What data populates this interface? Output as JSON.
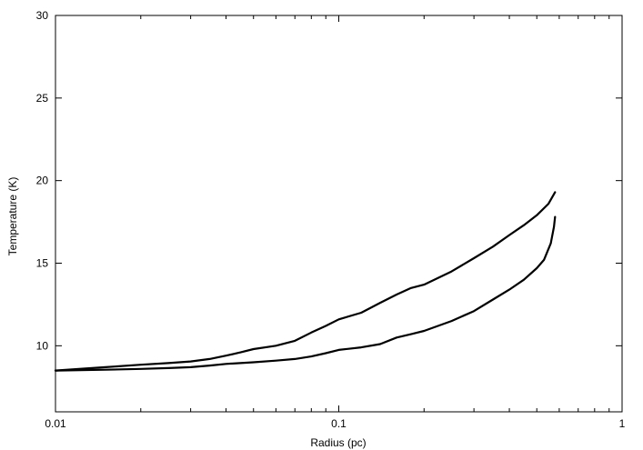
{
  "chart_data": {
    "type": "line",
    "title": "",
    "xlabel": "Radius (pc)",
    "ylabel": "Temperature (K)",
    "xscale": "log",
    "xlim": [
      0.01,
      1
    ],
    "ylim": [
      6,
      30
    ],
    "grid": false,
    "x_ticks": [
      {
        "value": 0.01,
        "label": "0.01"
      },
      {
        "value": 0.1,
        "label": "0.1"
      },
      {
        "value": 1,
        "label": "1"
      }
    ],
    "y_ticks": [
      {
        "value": 10,
        "label": "10"
      },
      {
        "value": 15,
        "label": "15"
      },
      {
        "value": 20,
        "label": "20"
      },
      {
        "value": 25,
        "label": "25"
      },
      {
        "value": 30,
        "label": "30"
      }
    ],
    "series": [
      {
        "x": [
          0.01,
          0.015,
          0.02,
          0.025,
          0.03,
          0.035,
          0.04,
          0.045,
          0.05,
          0.06,
          0.07,
          0.08,
          0.09,
          0.1,
          0.12,
          0.14,
          0.16,
          0.18,
          0.2,
          0.25,
          0.3,
          0.35,
          0.4,
          0.45,
          0.5,
          0.55,
          0.58
        ],
        "y": [
          8.5,
          8.7,
          8.85,
          8.95,
          9.05,
          9.2,
          9.4,
          9.6,
          9.8,
          10.0,
          10.3,
          10.8,
          11.2,
          11.6,
          12.0,
          12.6,
          13.1,
          13.5,
          13.7,
          14.5,
          15.3,
          16.0,
          16.7,
          17.3,
          17.9,
          18.6,
          19.3
        ]
      },
      {
        "x": [
          0.01,
          0.015,
          0.02,
          0.025,
          0.03,
          0.035,
          0.04,
          0.05,
          0.06,
          0.07,
          0.08,
          0.09,
          0.1,
          0.12,
          0.14,
          0.16,
          0.18,
          0.2,
          0.25,
          0.3,
          0.35,
          0.4,
          0.45,
          0.5,
          0.53,
          0.56,
          0.575,
          0.58
        ],
        "y": [
          8.5,
          8.55,
          8.6,
          8.65,
          8.7,
          8.8,
          8.9,
          9.0,
          9.1,
          9.2,
          9.35,
          9.55,
          9.75,
          9.9,
          10.1,
          10.5,
          10.7,
          10.9,
          11.5,
          12.1,
          12.8,
          13.4,
          14.0,
          14.7,
          15.2,
          16.2,
          17.2,
          17.8
        ]
      }
    ]
  }
}
